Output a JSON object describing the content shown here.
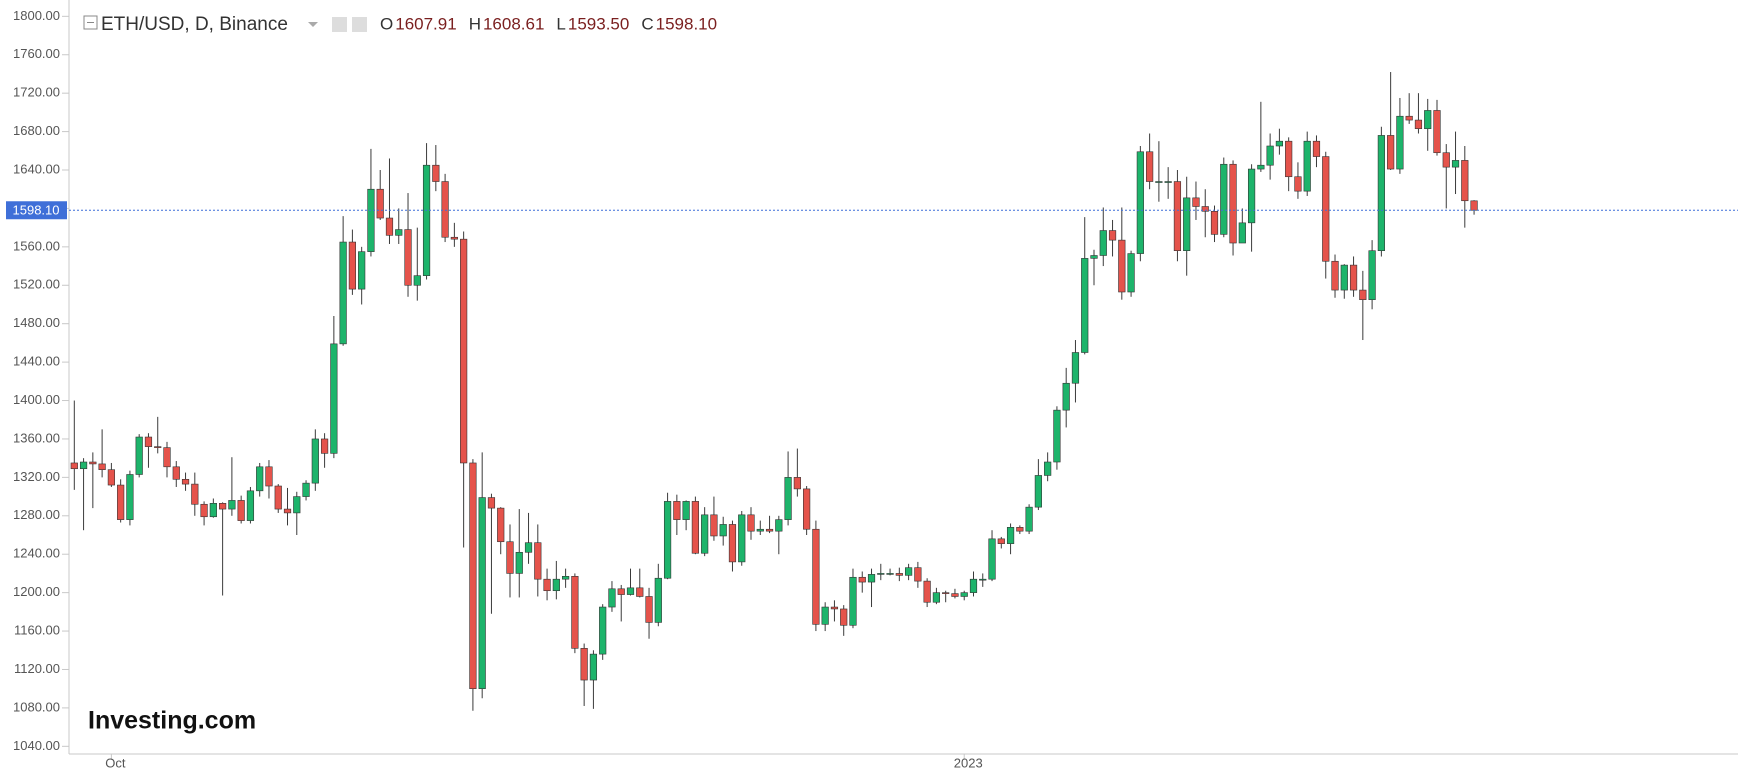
{
  "chart_data": {
    "type": "candlestick",
    "symbol": "ETH/USD, D, Binance",
    "ohlc_readout": [
      {
        "name": "O",
        "value": 1607.91
      },
      {
        "name": "H",
        "value": 1608.61
      },
      {
        "name": "L",
        "value": 1593.5,
        "label": "1593.50"
      },
      {
        "name": "C",
        "value": 1598.1,
        "label": "1598.10"
      }
    ],
    "logo": "Investing.com",
    "up_color": "#1db46b",
    "down_color": "#e5534b",
    "price_line_color": "#3f6fd8",
    "grid": false,
    "categories": [
      null,
      null,
      null,
      null,
      "Oct",
      null,
      null,
      null,
      null,
      null,
      null,
      null,
      null,
      null,
      null,
      null,
      null,
      null,
      null,
      null,
      null,
      null,
      null,
      null,
      null,
      null,
      null,
      null,
      null,
      null,
      null,
      null,
      null,
      null,
      null,
      null,
      null,
      null,
      null,
      null,
      null,
      null,
      null,
      null,
      null,
      null,
      null,
      null,
      null,
      null,
      null,
      null,
      null,
      null,
      null,
      null,
      null,
      null,
      null,
      null,
      null,
      null,
      null,
      null,
      null,
      null,
      null,
      null,
      null,
      null,
      null,
      null,
      null,
      null,
      null,
      null,
      null,
      null,
      null,
      null,
      null,
      null,
      null,
      null,
      null,
      null,
      null,
      null,
      null,
      null,
      null,
      null,
      null,
      null,
      null,
      null,
      "2023",
      null,
      null,
      null,
      null,
      null,
      null,
      null,
      null,
      null,
      null,
      null,
      null,
      null,
      null,
      null,
      null,
      null,
      null,
      null,
      null,
      null,
      null,
      null,
      null,
      null,
      null,
      null,
      null,
      null,
      null,
      null,
      null,
      null,
      null,
      null,
      null,
      null,
      null,
      null,
      null,
      null,
      null,
      null,
      null,
      null,
      null,
      null,
      null,
      null,
      null,
      null,
      null,
      null,
      null,
      null
    ],
    "open": [
      1335,
      1329,
      1336,
      1334,
      1328,
      1312,
      1276,
      1323,
      1362,
      1352,
      1351,
      1331,
      1318,
      1313,
      1292,
      1279,
      1293,
      1287,
      1296,
      1275,
      1306,
      1331,
      1311,
      1287,
      1283,
      1300,
      1314,
      1360,
      1345,
      1459,
      1565,
      1516,
      1555,
      1620,
      1590,
      1572,
      1578,
      1520,
      1530,
      1645,
      1628,
      1570,
      1568,
      1335,
      1100,
      1299,
      1288,
      1253,
      1220,
      1242,
      1252,
      1214,
      1202,
      1214,
      1217,
      1142,
      1109,
      1136,
      1185,
      1204,
      1198,
      1205,
      1196,
      1169,
      1215,
      1295,
      1276,
      1295,
      1241,
      1281,
      1259,
      1271,
      1232,
      1281,
      1264,
      1266,
      1264,
      1276,
      1320,
      1308,
      1266,
      1167,
      1185,
      1183,
      1166,
      1216,
      1211,
      1219,
      1220,
      1220,
      1218,
      1226,
      1212,
      1190,
      1200,
      1199,
      1196,
      1200,
      1214,
      1214,
      1256,
      1251,
      1268,
      1264,
      1289,
      1322,
      1336,
      1390,
      1418,
      1450,
      1548,
      1551,
      1577,
      1567,
      1513,
      1553,
      1659,
      1628,
      1628,
      1628,
      1556,
      1611,
      1602,
      1597,
      1573,
      1646,
      1564,
      1585,
      1641,
      1645,
      1665,
      1670,
      1633,
      1618,
      1670,
      1654,
      1545,
      1515,
      1541,
      1515,
      1505,
      1556,
      1676,
      1641,
      1696,
      1692,
      1683,
      1702,
      1658,
      1643,
      1650,
      1607.91
    ],
    "high": [
      1400,
      1340,
      1346,
      1370,
      1335,
      1318,
      1327,
      1365,
      1366,
      1383,
      1357,
      1337,
      1325,
      1325,
      1295,
      1298,
      1294,
      1341,
      1301,
      1310,
      1335,
      1338,
      1313,
      1309,
      1305,
      1317,
      1370,
      1366,
      1488,
      1592,
      1578,
      1560,
      1662,
      1640,
      1652,
      1600,
      1616,
      1580,
      1668,
      1666,
      1636,
      1585,
      1576,
      1339,
      1346,
      1303,
      1289,
      1271,
      1287,
      1283,
      1271,
      1225,
      1233,
      1225,
      1220,
      1147,
      1140,
      1188,
      1212,
      1208,
      1225,
      1225,
      1205,
      1230,
      1304,
      1302,
      1296,
      1300,
      1289,
      1300,
      1279,
      1275,
      1285,
      1289,
      1275,
      1280,
      1280,
      1347,
      1350,
      1311,
      1275,
      1190,
      1192,
      1187,
      1225,
      1222,
      1225,
      1230,
      1225,
      1226,
      1230,
      1232,
      1215,
      1205,
      1202,
      1204,
      1202,
      1222,
      1220,
      1265,
      1258,
      1272,
      1270,
      1292,
      1339,
      1346,
      1394,
      1434,
      1463,
      1591,
      1557,
      1601,
      1588,
      1601,
      1556,
      1665,
      1678,
      1670,
      1643,
      1640,
      1633,
      1628,
      1620,
      1603,
      1653,
      1650,
      1600,
      1646,
      1711,
      1678,
      1683,
      1674,
      1648,
      1680,
      1676,
      1659,
      1552,
      1542,
      1550,
      1535,
      1567,
      1685,
      1742,
      1715,
      1720,
      1720,
      1714,
      1713,
      1667,
      1680,
      1665,
      1608.61
    ],
    "low": [
      1307,
      1265,
      1288,
      1320,
      1310,
      1273,
      1270,
      1320,
      1330,
      1345,
      1320,
      1310,
      1306,
      1280,
      1270,
      1278,
      1197,
      1280,
      1272,
      1272,
      1300,
      1298,
      1283,
      1270,
      1260,
      1296,
      1306,
      1330,
      1340,
      1457,
      1510,
      1500,
      1550,
      1588,
      1563,
      1563,
      1508,
      1504,
      1526,
      1618,
      1565,
      1560,
      1247,
      1077,
      1090,
      1178,
      1240,
      1195,
      1195,
      1230,
      1196,
      1192,
      1193,
      1205,
      1137,
      1082,
      1079,
      1130,
      1180,
      1170,
      1197,
      1195,
      1152,
      1165,
      1214,
      1260,
      1265,
      1240,
      1238,
      1254,
      1249,
      1222,
      1228,
      1255,
      1260,
      1262,
      1240,
      1270,
      1300,
      1260,
      1160,
      1160,
      1170,
      1155,
      1163,
      1200,
      1185,
      1213,
      1218,
      1212,
      1213,
      1205,
      1185,
      1188,
      1190,
      1194,
      1192,
      1196,
      1206,
      1212,
      1246,
      1240,
      1261,
      1261,
      1286,
      1316,
      1328,
      1372,
      1398,
      1448,
      1520,
      1540,
      1550,
      1505,
      1508,
      1545,
      1620,
      1607,
      1610,
      1545,
      1530,
      1588,
      1570,
      1565,
      1570,
      1551,
      1564,
      1555,
      1638,
      1630,
      1656,
      1618,
      1610,
      1613,
      1643,
      1527,
      1507,
      1506,
      1508,
      1463,
      1495,
      1550,
      1640,
      1636,
      1688,
      1678,
      1660,
      1655,
      1600,
      1615,
      1580,
      1593.5
    ],
    "close": [
      1329,
      1336,
      1334,
      1328,
      1312,
      1276,
      1323,
      1362,
      1352,
      1351,
      1331,
      1318,
      1313,
      1292,
      1279,
      1293,
      1287,
      1296,
      1275,
      1306,
      1331,
      1311,
      1287,
      1283,
      1300,
      1314,
      1360,
      1345,
      1459,
      1565,
      1516,
      1555,
      1620,
      1590,
      1572,
      1578,
      1520,
      1530,
      1645,
      1628,
      1570,
      1568,
      1335,
      1100,
      1299,
      1288,
      1253,
      1220,
      1242,
      1252,
      1214,
      1202,
      1214,
      1217,
      1142,
      1109,
      1136,
      1185,
      1204,
      1198,
      1205,
      1196,
      1169,
      1215,
      1295,
      1276,
      1295,
      1241,
      1281,
      1259,
      1271,
      1232,
      1281,
      1264,
      1266,
      1264,
      1276,
      1320,
      1308,
      1266,
      1167,
      1185,
      1183,
      1166,
      1216,
      1211,
      1219,
      1220,
      1220,
      1218,
      1226,
      1212,
      1190,
      1200,
      1199,
      1196,
      1200,
      1214,
      1214,
      1256,
      1251,
      1268,
      1264,
      1289,
      1322,
      1336,
      1390,
      1418,
      1450,
      1548,
      1551,
      1577,
      1567,
      1513,
      1553,
      1659,
      1628,
      1628,
      1628,
      1556,
      1611,
      1602,
      1597,
      1573,
      1646,
      1564,
      1585,
      1641,
      1645,
      1665,
      1670,
      1633,
      1618,
      1670,
      1654,
      1545,
      1515,
      1541,
      1515,
      1505,
      1556,
      1676,
      1641,
      1696,
      1692,
      1683,
      1702,
      1658,
      1643,
      1650,
      1608,
      1598.1
    ],
    "ylim": [
      1032,
      1817
    ],
    "yticks": [
      {
        "value": 1800,
        "label": "1800.00"
      },
      {
        "value": 1760,
        "label": "1760.00"
      },
      {
        "value": 1720,
        "label": "1720.00"
      },
      {
        "value": 1680,
        "label": "1680.00"
      },
      {
        "value": 1640,
        "label": "1640.00"
      },
      {
        "value": 1600,
        "label": "1600.00"
      },
      {
        "value": 1560,
        "label": "1560.00"
      },
      {
        "value": 1520,
        "label": "1520.00"
      },
      {
        "value": 1480,
        "label": "1480.00"
      },
      {
        "value": 1440,
        "label": "1440.00"
      },
      {
        "value": 1400,
        "label": "1400.00"
      },
      {
        "value": 1360,
        "label": "1360.00"
      },
      {
        "value": 1320,
        "label": "1320.00"
      },
      {
        "value": 1280,
        "label": "1280.00"
      },
      {
        "value": 1240,
        "label": "1240.00"
      },
      {
        "value": 1200,
        "label": "1200.00"
      },
      {
        "value": 1160,
        "label": "1160.00"
      },
      {
        "value": 1120,
        "label": "1120.00"
      },
      {
        "value": 1080,
        "label": "1080.00"
      },
      {
        "value": 1040,
        "label": "1040.00"
      }
    ]
  }
}
